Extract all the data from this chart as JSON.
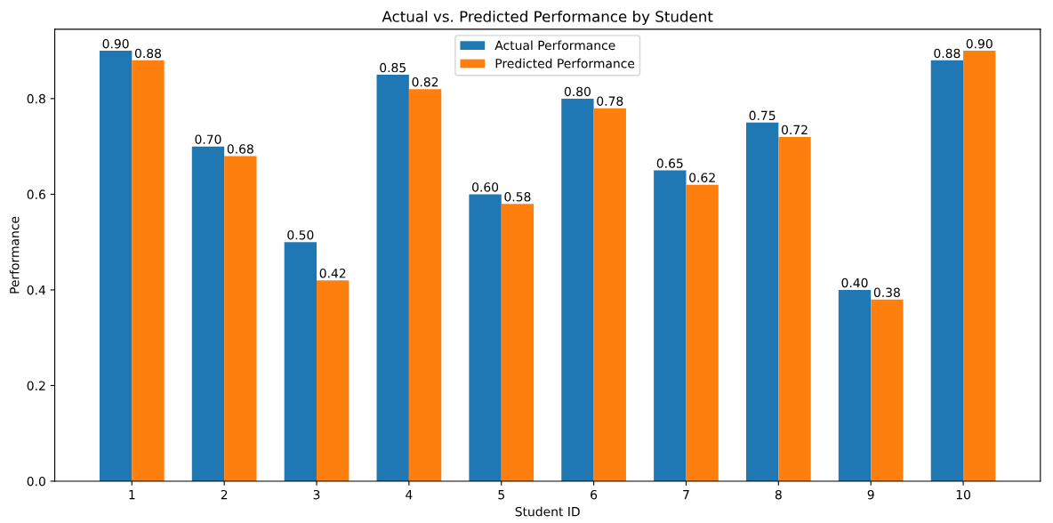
{
  "chart_data": {
    "type": "bar",
    "title": "Actual vs. Predicted Performance by Student",
    "xlabel": "Student ID",
    "ylabel": "Performance",
    "categories": [
      "1",
      "2",
      "3",
      "4",
      "5",
      "6",
      "7",
      "8",
      "9",
      "10"
    ],
    "series": [
      {
        "name": "Actual Performance",
        "color": "#1f77b4",
        "values": [
          0.9,
          0.7,
          0.5,
          0.85,
          0.6,
          0.8,
          0.65,
          0.75,
          0.4,
          0.88
        ],
        "value_labels": [
          "0.90",
          "0.70",
          "0.50",
          "0.85",
          "0.60",
          "0.80",
          "0.65",
          "0.75",
          "0.40",
          "0.88"
        ]
      },
      {
        "name": "Predicted Performance",
        "color": "#ff7f0e",
        "values": [
          0.88,
          0.68,
          0.42,
          0.82,
          0.58,
          0.78,
          0.62,
          0.72,
          0.38,
          0.9
        ],
        "value_labels": [
          "0.88",
          "0.68",
          "0.42",
          "0.82",
          "0.58",
          "0.78",
          "0.62",
          "0.72",
          "0.38",
          "0.90"
        ]
      }
    ],
    "ylim": [
      0,
      0.945
    ],
    "yticks": [
      {
        "value": 0,
        "label": "0.0"
      },
      {
        "value": 0.2,
        "label": "0.2"
      },
      {
        "value": 0.4,
        "label": "0.4"
      },
      {
        "value": 0.6,
        "label": "0.6"
      },
      {
        "value": 0.8,
        "label": "0.8"
      }
    ],
    "legend": "top",
    "grid": false
  }
}
